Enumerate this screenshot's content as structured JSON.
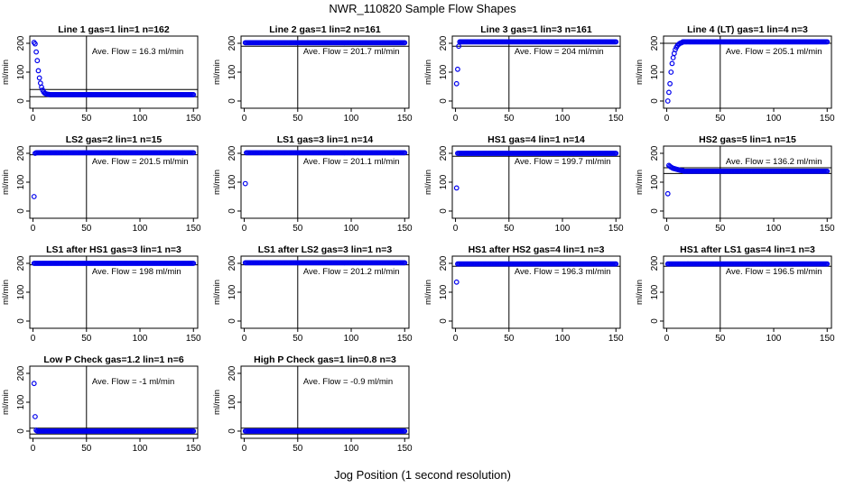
{
  "figure": {
    "title": "NWR_110820  Sample Flow Shapes",
    "xlabel": "Jog Position (1 second resolution)"
  },
  "colors": {
    "points": "#0000ee",
    "axes": "#000000",
    "background": "#ffffff"
  },
  "chart_data": [
    {
      "type": "scatter",
      "title": "Line 1 gas=1 lin=1 n=162",
      "ylabel": "ml/min",
      "xlim": [
        0,
        150
      ],
      "ylim": [
        0,
        200
      ],
      "xticks": [
        0,
        50,
        100,
        150
      ],
      "yticks": [
        0,
        100,
        200
      ],
      "hlines": [
        15,
        40
      ],
      "vline": 50,
      "annotation": "Ave. Flow =  16.3  ml/min",
      "x": [
        1,
        2,
        3,
        4,
        5,
        6,
        7,
        8,
        9,
        10,
        11,
        12,
        13,
        14,
        15
      ],
      "y": [
        203,
        198,
        170,
        140,
        105,
        80,
        62,
        48,
        38,
        31,
        27,
        25,
        24,
        23,
        23
      ],
      "tail": {
        "from": 16,
        "to": 150,
        "value": 22
      }
    },
    {
      "type": "scatter",
      "title": "Line 2 gas=1 lin=2 n=161",
      "ylabel": "ml/min",
      "xlim": [
        0,
        150
      ],
      "ylim": [
        0,
        200
      ],
      "xticks": [
        0,
        50,
        100,
        150
      ],
      "yticks": [
        0,
        100,
        200
      ],
      "hlines": [
        190
      ],
      "vline": 50,
      "annotation": "Ave. Flow =  201.7  ml/min",
      "x": [],
      "y": [],
      "tail": {
        "from": 1,
        "to": 150,
        "value": 202
      }
    },
    {
      "type": "scatter",
      "title": "Line 3 gas=1 lin=3 n=161",
      "ylabel": "ml/min",
      "xlim": [
        0,
        150
      ],
      "ylim": [
        0,
        200
      ],
      "xticks": [
        0,
        50,
        100,
        150
      ],
      "yticks": [
        0,
        100,
        200
      ],
      "hlines": [
        190
      ],
      "vline": 50,
      "annotation": "Ave. Flow =  204  ml/min",
      "x": [
        1,
        2,
        3
      ],
      "y": [
        60,
        110,
        190
      ],
      "tail": {
        "from": 4,
        "to": 150,
        "value": 205
      }
    },
    {
      "type": "scatter",
      "title": "Line 4 (LT) gas=1 lin=4 n=3",
      "ylabel": "ml/min",
      "xlim": [
        0,
        150
      ],
      "ylim": [
        0,
        200
      ],
      "xticks": [
        0,
        50,
        100,
        150
      ],
      "yticks": [
        0,
        100,
        200
      ],
      "hlines": [
        200
      ],
      "vline": 50,
      "annotation": "Ave. Flow =  205.1  ml/min",
      "x": [
        1,
        2,
        3,
        4,
        5,
        6,
        7,
        8,
        9,
        10,
        11,
        12,
        13,
        14
      ],
      "y": [
        0,
        30,
        60,
        100,
        130,
        150,
        165,
        178,
        186,
        192,
        196,
        199,
        201,
        202
      ],
      "tail": {
        "from": 15,
        "to": 150,
        "value": 205
      }
    },
    {
      "type": "scatter",
      "title": "LS2 gas=2 lin=1 n=15",
      "ylabel": "ml/min",
      "xlim": [
        0,
        150
      ],
      "ylim": [
        0,
        200
      ],
      "xticks": [
        0,
        50,
        100,
        150
      ],
      "yticks": [
        0,
        100,
        200
      ],
      "hlines": [
        195
      ],
      "vline": 50,
      "annotation": "Ave. Flow =  201.5  ml/min",
      "x": [
        1,
        2
      ],
      "y": [
        50,
        200
      ],
      "tail": {
        "from": 3,
        "to": 150,
        "value": 202
      }
    },
    {
      "type": "scatter",
      "title": "LS1 gas=3 lin=1 n=14",
      "ylabel": "ml/min",
      "xlim": [
        0,
        150
      ],
      "ylim": [
        0,
        200
      ],
      "xticks": [
        0,
        50,
        100,
        150
      ],
      "yticks": [
        0,
        100,
        200
      ],
      "hlines": [
        195
      ],
      "vline": 50,
      "annotation": "Ave. Flow =  201.1  ml/min",
      "x": [
        1
      ],
      "y": [
        95
      ],
      "tail": {
        "from": 2,
        "to": 150,
        "value": 202
      }
    },
    {
      "type": "scatter",
      "title": "HS1 gas=4 lin=1 n=14",
      "ylabel": "ml/min",
      "xlim": [
        0,
        150
      ],
      "ylim": [
        0,
        200
      ],
      "xticks": [
        0,
        50,
        100,
        150
      ],
      "yticks": [
        0,
        100,
        200
      ],
      "hlines": [
        190
      ],
      "vline": 50,
      "annotation": "Ave. Flow =  199.7  ml/min",
      "x": [
        1
      ],
      "y": [
        80
      ],
      "tail": {
        "from": 2,
        "to": 150,
        "value": 200
      }
    },
    {
      "type": "scatter",
      "title": "HS2 gas=5 lin=1 n=15",
      "ylabel": "ml/min",
      "xlim": [
        0,
        150
      ],
      "ylim": [
        0,
        200
      ],
      "xticks": [
        0,
        50,
        100,
        150
      ],
      "yticks": [
        0,
        100,
        200
      ],
      "hlines": [
        130,
        150
      ],
      "vline": 50,
      "annotation": "Ave. Flow =  136.2  ml/min",
      "x": [
        1,
        2,
        3,
        4,
        5,
        6,
        7,
        8,
        9,
        10,
        11,
        12,
        13,
        14,
        15
      ],
      "y": [
        60,
        158,
        155,
        152,
        150,
        148,
        147,
        146,
        145,
        144,
        143,
        142,
        141,
        140,
        140
      ],
      "tail": {
        "from": 16,
        "to": 150,
        "value": 138
      }
    },
    {
      "type": "scatter",
      "title": "LS1 after HS1 gas=3 lin=1 n=3",
      "ylabel": "ml/min",
      "xlim": [
        0,
        150
      ],
      "ylim": [
        0,
        200
      ],
      "xticks": [
        0,
        50,
        100,
        150
      ],
      "yticks": [
        0,
        100,
        200
      ],
      "hlines": [
        195
      ],
      "vline": 50,
      "annotation": "Ave. Flow =  198  ml/min",
      "x": [],
      "y": [],
      "tail": {
        "from": 1,
        "to": 150,
        "value": 200
      }
    },
    {
      "type": "scatter",
      "title": "LS1 after LS2 gas=3 lin=1 n=3",
      "ylabel": "ml/min",
      "xlim": [
        0,
        150
      ],
      "ylim": [
        0,
        200
      ],
      "xticks": [
        0,
        50,
        100,
        150
      ],
      "yticks": [
        0,
        100,
        200
      ],
      "hlines": [
        195
      ],
      "vline": 50,
      "annotation": "Ave. Flow =  201.2  ml/min",
      "x": [],
      "y": [],
      "tail": {
        "from": 1,
        "to": 150,
        "value": 202
      }
    },
    {
      "type": "scatter",
      "title": "HS1 after HS2 gas=4 lin=1 n=3",
      "ylabel": "ml/min",
      "xlim": [
        0,
        150
      ],
      "ylim": [
        0,
        200
      ],
      "xticks": [
        0,
        50,
        100,
        150
      ],
      "yticks": [
        0,
        100,
        200
      ],
      "hlines": [
        190
      ],
      "vline": 50,
      "annotation": "Ave. Flow =  196.3  ml/min",
      "x": [
        1
      ],
      "y": [
        135
      ],
      "tail": {
        "from": 2,
        "to": 150,
        "value": 198
      }
    },
    {
      "type": "scatter",
      "title": "HS1 after LS1 gas=4 lin=1 n=3",
      "ylabel": "ml/min",
      "xlim": [
        0,
        150
      ],
      "ylim": [
        0,
        200
      ],
      "xticks": [
        0,
        50,
        100,
        150
      ],
      "yticks": [
        0,
        100,
        200
      ],
      "hlines": [
        190
      ],
      "vline": 50,
      "annotation": "Ave. Flow =  196.5  ml/min",
      "x": [],
      "y": [],
      "tail": {
        "from": 1,
        "to": 150,
        "value": 198
      }
    },
    {
      "type": "scatter",
      "title": "Low P Check gas=1.2 lin=1 n=6",
      "ylabel": "ml/min",
      "xlim": [
        0,
        150
      ],
      "ylim": [
        0,
        200
      ],
      "xticks": [
        0,
        50,
        100,
        150
      ],
      "yticks": [
        0,
        100,
        200
      ],
      "hlines": [
        -10,
        10
      ],
      "vline": 50,
      "annotation": "Ave. Flow =  -1  ml/min",
      "x": [
        1,
        2,
        3
      ],
      "y": [
        165,
        50,
        3
      ],
      "tail": {
        "from": 4,
        "to": 150,
        "value": 0
      }
    },
    {
      "type": "scatter",
      "title": "High P Check gas=1 lin=0.8 n=3",
      "ylabel": "ml/min",
      "xlim": [
        0,
        150
      ],
      "ylim": [
        0,
        200
      ],
      "xticks": [
        0,
        50,
        100,
        150
      ],
      "yticks": [
        0,
        100,
        200
      ],
      "hlines": [
        -10,
        10
      ],
      "vline": 50,
      "annotation": "Ave. Flow =  -0.9  ml/min",
      "x": [],
      "y": [],
      "tail": {
        "from": 1,
        "to": 150,
        "value": 0
      }
    }
  ]
}
